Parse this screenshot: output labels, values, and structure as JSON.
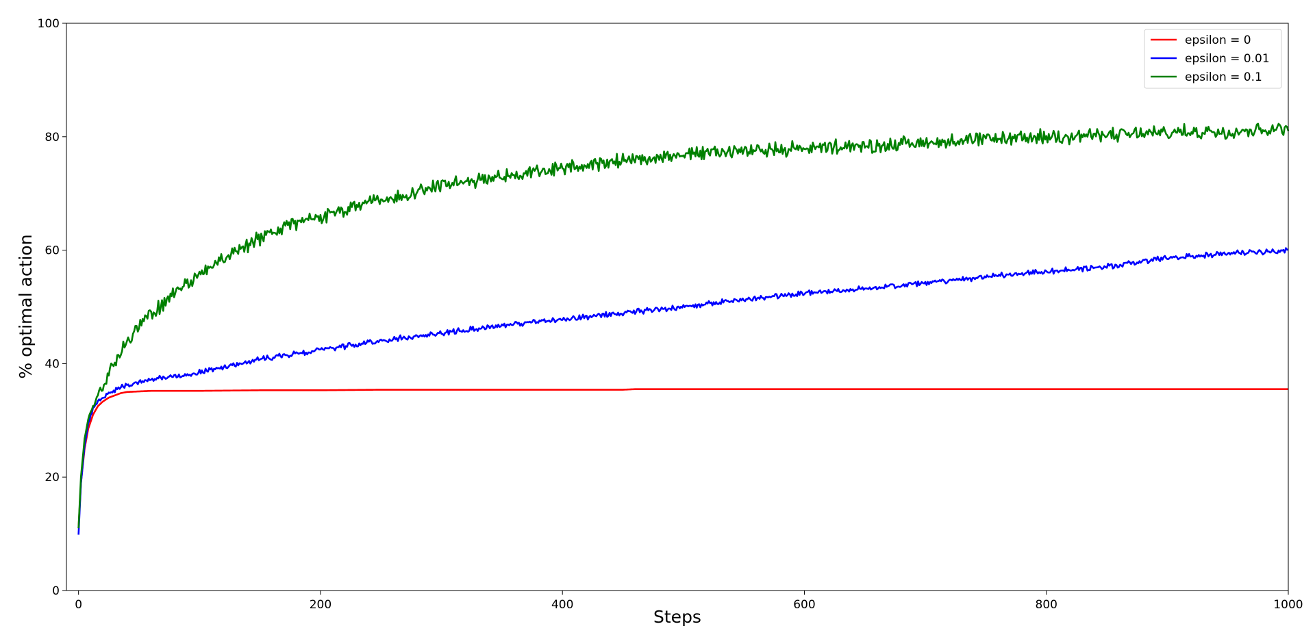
{
  "chart_data": {
    "type": "line",
    "title": "",
    "xlabel": "Steps",
    "ylabel": "% optimal action",
    "xlim": [
      -10,
      1000
    ],
    "ylim": [
      0,
      100
    ],
    "xticks": [
      0,
      200,
      400,
      600,
      800,
      1000
    ],
    "yticks": [
      0,
      20,
      40,
      60,
      80,
      100
    ],
    "grid": false,
    "legend_position": "top-right",
    "series": [
      {
        "name": "epsilon = 0",
        "color": "#ff0000",
        "x": [
          0,
          2,
          5,
          8,
          12,
          16,
          20,
          25,
          30,
          35,
          40,
          50,
          60,
          80,
          100,
          150,
          200,
          250,
          300,
          400,
          450,
          460,
          500,
          600,
          700,
          800,
          900,
          1000
        ],
        "y": [
          11,
          19,
          25,
          28.5,
          31,
          32.5,
          33.3,
          34,
          34.4,
          34.8,
          35,
          35.1,
          35.2,
          35.2,
          35.2,
          35.3,
          35.3,
          35.4,
          35.4,
          35.4,
          35.4,
          35.5,
          35.5,
          35.5,
          35.5,
          35.5,
          35.5,
          35.5
        ]
      },
      {
        "name": "epsilon = 0.01",
        "color": "#0000ff",
        "x": [
          0,
          2,
          5,
          8,
          12,
          16,
          20,
          25,
          30,
          40,
          50,
          60,
          80,
          100,
          150,
          200,
          250,
          300,
          350,
          400,
          450,
          500,
          550,
          600,
          650,
          700,
          750,
          800,
          850,
          900,
          950,
          1000
        ],
        "y": [
          9.8,
          19,
          25.5,
          29.5,
          32,
          33.3,
          34,
          34.8,
          35.4,
          36.2,
          36.7,
          37.2,
          37.8,
          38.5,
          40.8,
          42.4,
          44,
          45.4,
          46.7,
          47.8,
          48.9,
          50,
          51.3,
          52.5,
          53.2,
          54.2,
          55.3,
          56.2,
          57.1,
          58.6,
          59.4,
          60
        ]
      },
      {
        "name": "epsilon = 0.1",
        "color": "#008000",
        "x": [
          0,
          2,
          5,
          8,
          12,
          16,
          20,
          25,
          30,
          40,
          50,
          60,
          70,
          80,
          100,
          120,
          150,
          175,
          200,
          250,
          300,
          350,
          400,
          450,
          500,
          550,
          600,
          650,
          700,
          750,
          800,
          850,
          900,
          950,
          1000
        ],
        "y": [
          11,
          20,
          26.5,
          30,
          32.8,
          34.5,
          36,
          38.5,
          40.5,
          43.5,
          46.5,
          48.8,
          50.5,
          52.5,
          55.8,
          58.5,
          62,
          64.5,
          66,
          68.8,
          71.5,
          73,
          74.5,
          75.8,
          77,
          77.5,
          78,
          78.3,
          79,
          79.5,
          80,
          80.3,
          80.7,
          81,
          81.5
        ]
      }
    ]
  }
}
